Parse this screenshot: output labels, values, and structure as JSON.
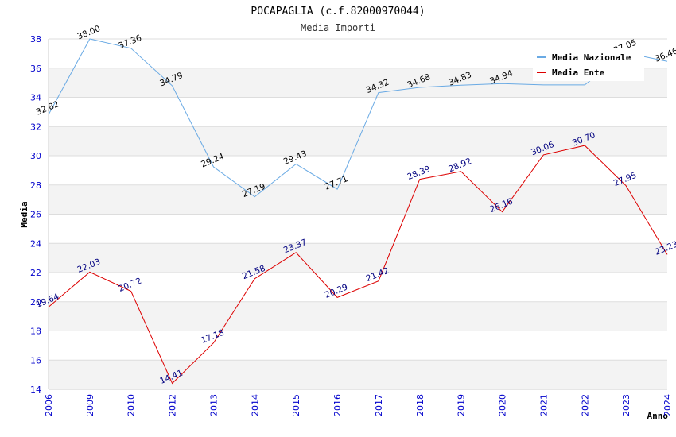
{
  "chart_data": {
    "type": "line",
    "title": "POCAPAGLIA (c.f.82000970044)",
    "subtitle": "Media Importi",
    "xlabel": "Anno",
    "ylabel": "Media",
    "ylim": [
      14,
      38
    ],
    "yticks": [
      14,
      16,
      18,
      20,
      22,
      24,
      26,
      28,
      30,
      32,
      34,
      36,
      38
    ],
    "categories": [
      "2006",
      "2009",
      "2010",
      "2012",
      "2013",
      "2014",
      "2015",
      "2016",
      "2017",
      "2018",
      "2019",
      "2020",
      "2021",
      "2022",
      "2023",
      "2024"
    ],
    "series": [
      {
        "name": "Media Nazionale",
        "color": "#6aaae4",
        "label_color": "#000000",
        "values": [
          32.82,
          38.0,
          37.36,
          34.79,
          29.24,
          27.19,
          29.43,
          27.71,
          34.32,
          34.68,
          34.83,
          34.94,
          34.85,
          34.85,
          37.05,
          36.46
        ],
        "labels": [
          "32.82",
          "38.00",
          "37.36",
          "34.79",
          "29.24",
          "27.19",
          "29.43",
          "27.71",
          "34.32",
          "34.68",
          "34.83",
          "34.94",
          "",
          "",
          "37.05",
          "36.46"
        ]
      },
      {
        "name": "Media Ente",
        "color": "#dd0000",
        "label_color": "#000080",
        "values": [
          19.64,
          22.03,
          20.72,
          14.41,
          17.18,
          21.58,
          23.37,
          20.29,
          21.42,
          28.39,
          28.92,
          26.16,
          30.06,
          30.7,
          27.95,
          23.23
        ],
        "labels": [
          "19.64",
          "22.03",
          "20.72",
          "14.41",
          "17.18",
          "21.58",
          "23.37",
          "20.29",
          "21.42",
          "28.39",
          "28.92",
          "26.16",
          "30.06",
          "30.70",
          "27.95",
          "23.23"
        ]
      }
    ],
    "legend": "top-right",
    "grid": true
  }
}
